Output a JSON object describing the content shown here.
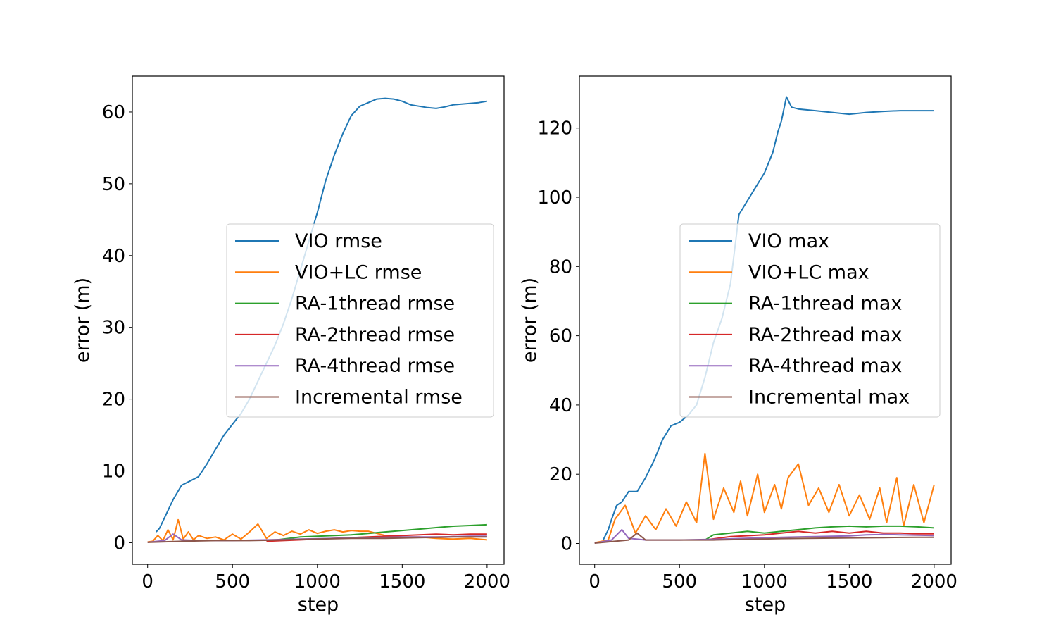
{
  "figure": {
    "background": "#ffffff"
  },
  "chart_data": [
    {
      "type": "line",
      "xlabel": "step",
      "ylabel": "error (m)",
      "xlim": [
        -90,
        2100
      ],
      "ylim": [
        -3,
        65
      ],
      "xticks": [
        0,
        500,
        1000,
        1500,
        2000
      ],
      "yticks": [
        0,
        10,
        20,
        30,
        40,
        50,
        60
      ],
      "grid": false,
      "legend_position": "center-right",
      "series": [
        {
          "name": "VIO rmse",
          "color": "#1f77b4",
          "x": [
            50,
            70,
            100,
            150,
            200,
            250,
            300,
            350,
            400,
            450,
            500,
            550,
            600,
            650,
            700,
            750,
            800,
            850,
            900,
            950,
            1000,
            1050,
            1100,
            1150,
            1200,
            1250,
            1300,
            1350,
            1400,
            1450,
            1500,
            1550,
            1600,
            1650,
            1700,
            1750,
            1800,
            1850,
            1900,
            1950,
            2000
          ],
          "y": [
            1.5,
            2.0,
            3.5,
            6.0,
            8.0,
            8.6,
            9.2,
            11.0,
            13.0,
            15.0,
            16.5,
            18.0,
            20.0,
            22.5,
            25.0,
            27.5,
            30.5,
            34.0,
            38.0,
            42.0,
            46.0,
            50.5,
            54.0,
            57.0,
            59.5,
            60.8,
            61.3,
            61.8,
            61.9,
            61.8,
            61.5,
            61.0,
            60.8,
            60.6,
            60.5,
            60.7,
            61.0,
            61.1,
            61.2,
            61.3,
            61.5
          ]
        },
        {
          "name": "VIO+LC rmse",
          "color": "#ff7f0e",
          "x": [
            0,
            30,
            60,
            90,
            120,
            150,
            180,
            210,
            240,
            270,
            300,
            350,
            400,
            450,
            500,
            550,
            600,
            650,
            700,
            750,
            800,
            850,
            900,
            950,
            1000,
            1050,
            1100,
            1150,
            1200,
            1250,
            1300,
            1400,
            1500,
            1600,
            1700,
            1800,
            1900,
            2000
          ],
          "y": [
            0.1,
            0.2,
            1.0,
            0.3,
            1.8,
            0.4,
            3.2,
            0.5,
            1.5,
            0.4,
            1.0,
            0.6,
            0.8,
            0.4,
            1.2,
            0.5,
            1.5,
            2.6,
            0.6,
            1.5,
            1.0,
            1.6,
            1.2,
            1.8,
            1.3,
            1.6,
            1.8,
            1.5,
            1.7,
            1.6,
            1.6,
            1.0,
            0.8,
            0.8,
            0.6,
            0.5,
            0.6,
            0.4
          ]
        },
        {
          "name": "RA-1thread rmse",
          "color": "#2ca02c",
          "x": [
            700,
            800,
            900,
            1000,
            1100,
            1200,
            1300,
            1400,
            1500,
            1600,
            1700,
            1800,
            1900,
            2000
          ],
          "y": [
            0.2,
            0.5,
            0.8,
            0.9,
            1.0,
            1.1,
            1.3,
            1.5,
            1.7,
            1.9,
            2.1,
            2.3,
            2.4,
            2.5
          ]
        },
        {
          "name": "RA-2thread rmse",
          "color": "#d62728",
          "x": [
            700,
            900,
            1100,
            1200,
            1300,
            1400,
            1500,
            1600,
            1700,
            1800,
            1900,
            2000
          ],
          "y": [
            0.2,
            0.4,
            0.6,
            0.7,
            0.8,
            0.9,
            1.0,
            1.1,
            1.2,
            1.1,
            1.2,
            1.2
          ]
        },
        {
          "name": "RA-4thread rmse",
          "color": "#9467bd",
          "x": [
            0,
            100,
            150,
            200,
            300,
            500,
            700,
            900,
            1100,
            1300,
            1500,
            1700,
            1900,
            2000
          ],
          "y": [
            0.05,
            0.3,
            1.2,
            0.4,
            0.3,
            0.3,
            0.4,
            0.5,
            0.6,
            0.7,
            0.8,
            0.8,
            0.9,
            0.9
          ]
        },
        {
          "name": "Incremental rmse",
          "color": "#8c564b",
          "x": [
            0,
            200,
            400,
            600,
            800,
            1000,
            1200,
            1400,
            1600,
            1800,
            2000
          ],
          "y": [
            0.05,
            0.2,
            0.3,
            0.3,
            0.4,
            0.5,
            0.6,
            0.6,
            0.7,
            0.8,
            0.8
          ]
        }
      ]
    },
    {
      "type": "line",
      "xlabel": "step",
      "ylabel": "error (m)",
      "xlim": [
        -90,
        2100
      ],
      "ylim": [
        -6,
        135
      ],
      "xticks": [
        0,
        500,
        1000,
        1500,
        2000
      ],
      "yticks": [
        0,
        20,
        40,
        60,
        80,
        100,
        120
      ],
      "grid": false,
      "legend_position": "center-right",
      "series": [
        {
          "name": "VIO max",
          "color": "#1f77b4",
          "x": [
            50,
            80,
            100,
            130,
            160,
            200,
            250,
            300,
            350,
            400,
            450,
            500,
            550,
            600,
            650,
            700,
            750,
            800,
            850,
            900,
            950,
            1000,
            1050,
            1080,
            1100,
            1130,
            1160,
            1200,
            1300,
            1400,
            1500,
            1600,
            1700,
            1800,
            1900,
            2000
          ],
          "y": [
            1.0,
            4.0,
            7.0,
            11.0,
            12.0,
            15.0,
            15.0,
            19.0,
            24.0,
            30.0,
            34.0,
            35.0,
            37.0,
            40.0,
            48.0,
            58.0,
            65.0,
            75.0,
            95.0,
            99.0,
            103.0,
            107.0,
            113.0,
            119.0,
            122.0,
            129.0,
            126.0,
            125.5,
            125.0,
            124.5,
            124.0,
            124.5,
            124.8,
            125.0,
            125.0,
            125.0
          ]
        },
        {
          "name": "VIO+LC max",
          "color": "#ff7f0e",
          "x": [
            0,
            80,
            120,
            180,
            240,
            300,
            360,
            420,
            480,
            540,
            600,
            650,
            700,
            760,
            820,
            860,
            900,
            960,
            1000,
            1060,
            1100,
            1140,
            1200,
            1260,
            1320,
            1380,
            1440,
            1500,
            1560,
            1620,
            1680,
            1720,
            1780,
            1820,
            1880,
            1940,
            2000
          ],
          "y": [
            0.2,
            1.0,
            7.0,
            11.0,
            3.0,
            8.0,
            4.0,
            10.0,
            5.0,
            12.0,
            6.0,
            26.0,
            7.0,
            16.0,
            9.0,
            18.0,
            8.0,
            20.0,
            9.0,
            17.0,
            10.0,
            19.0,
            23.0,
            11.0,
            16.0,
            9.0,
            17.0,
            8.0,
            14.0,
            7.0,
            16.0,
            6.0,
            19.0,
            5.0,
            17.0,
            6.0,
            17.0
          ]
        },
        {
          "name": "RA-1thread max",
          "color": "#2ca02c",
          "x": [
            650,
            700,
            800,
            900,
            1000,
            1100,
            1200,
            1300,
            1400,
            1500,
            1600,
            1700,
            1800,
            1900,
            2000
          ],
          "y": [
            1.0,
            2.5,
            3.0,
            3.5,
            3.0,
            3.5,
            4.0,
            4.5,
            4.8,
            5.0,
            4.8,
            5.0,
            5.0,
            4.8,
            4.5
          ]
        },
        {
          "name": "RA-2thread max",
          "color": "#d62728",
          "x": [
            650,
            800,
            1000,
            1100,
            1200,
            1300,
            1400,
            1500,
            1600,
            1700,
            1800,
            1900,
            2000
          ],
          "y": [
            1.0,
            2.0,
            2.5,
            3.0,
            3.5,
            3.0,
            3.5,
            3.0,
            3.5,
            3.0,
            3.0,
            2.8,
            2.8
          ]
        },
        {
          "name": "RA-4thread max",
          "color": "#9467bd",
          "x": [
            0,
            100,
            160,
            200,
            300,
            500,
            700,
            900,
            1100,
            1300,
            1500,
            1600,
            1700,
            1800,
            1900,
            2000
          ],
          "y": [
            0.1,
            1.0,
            4.0,
            1.5,
            1.0,
            1.0,
            1.2,
            1.5,
            1.8,
            2.0,
            2.2,
            2.5,
            2.6,
            2.5,
            2.4,
            2.3
          ]
        },
        {
          "name": "Incremental max",
          "color": "#8c564b",
          "x": [
            0,
            200,
            250,
            300,
            500,
            700,
            900,
            1100,
            1300,
            1500,
            1700,
            1900,
            2000
          ],
          "y": [
            0.1,
            1.0,
            3.0,
            1.0,
            1.0,
            1.0,
            1.2,
            1.4,
            1.5,
            1.6,
            1.7,
            1.8,
            1.8
          ]
        }
      ]
    }
  ]
}
